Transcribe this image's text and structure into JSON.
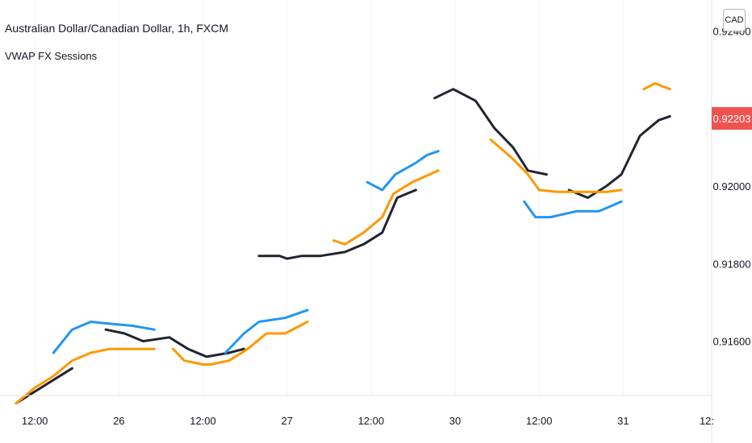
{
  "header": {
    "symbol_title": "Australian Dollar/Canadian Dollar, 1h, FXCM",
    "indicator_label": "VWAP FX Sessions",
    "currency_button": "CAD",
    "last_price_label": "0.92203"
  },
  "colors": {
    "black_series": "#222530",
    "blue_series": "#2196f3",
    "orange_series": "#ff9800",
    "price_badge": "#ef5350",
    "grid": "#f0f3fa"
  },
  "chart_data": {
    "type": "line",
    "title": "Australian Dollar/Canadian Dollar, 1h, FXCM",
    "subtitle": "VWAP FX Sessions",
    "xlabel": "",
    "ylabel": "",
    "ylim": [
      0.9146,
      0.9248
    ],
    "x_ticks": [
      "12:00",
      "26",
      "12:00",
      "27",
      "12:00",
      "30",
      "12:00",
      "31",
      "12:"
    ],
    "y_ticks": [
      "0.92400",
      "0.92000",
      "0.91800",
      "0.91600"
    ],
    "last_price": 0.92203,
    "grid": true,
    "series": [
      {
        "color": "#222530",
        "segments": [
          [
            [
              0,
              0.9144
            ],
            [
              2.0,
              0.915
            ],
            [
              3.0,
              0.9153
            ]
          ],
          [
            [
              4.8,
              0.9163
            ],
            [
              5.8,
              0.9162
            ],
            [
              6.8,
              0.916
            ],
            [
              8.2,
              0.9161
            ],
            [
              9.2,
              0.9158
            ],
            [
              10.2,
              0.9156
            ],
            [
              11.4,
              0.9157
            ],
            [
              12.2,
              0.9158
            ]
          ],
          [
            [
              13.0,
              0.9182
            ],
            [
              14.1,
              0.9182
            ],
            [
              14.5,
              0.91813
            ],
            [
              15.3,
              0.9182
            ],
            [
              16.3,
              0.9182
            ],
            [
              17.6,
              0.9183
            ],
            [
              18.6,
              0.9185
            ],
            [
              19.6,
              0.9188
            ],
            [
              20.4,
              0.9197
            ],
            [
              21.4,
              0.9199
            ]
          ],
          [
            [
              22.4,
              0.92227
            ],
            [
              23.4,
              0.9225
            ],
            [
              24.6,
              0.9222
            ],
            [
              25.6,
              0.9215
            ],
            [
              26.6,
              0.921
            ],
            [
              27.4,
              0.9204
            ],
            [
              28.4,
              0.9203
            ]
          ],
          [
            [
              29.6,
              0.9199
            ],
            [
              30.6,
              0.9197
            ],
            [
              31.6,
              0.92
            ],
            [
              32.4,
              0.9203
            ],
            [
              33.4,
              0.9213
            ],
            [
              34.4,
              0.9217
            ],
            [
              35.0,
              0.9218
            ]
          ]
        ]
      },
      {
        "color": "#2196f3",
        "segments": [
          [
            [
              2.0,
              0.9157
            ],
            [
              3.0,
              0.9163
            ],
            [
              4.0,
              0.9165
            ],
            [
              5.0,
              0.91645
            ],
            [
              6.2,
              0.9164
            ],
            [
              7.4,
              0.9163
            ]
          ],
          [
            [
              11.2,
              0.9157
            ],
            [
              12.2,
              0.9162
            ],
            [
              13.0,
              0.9165
            ],
            [
              14.4,
              0.9166
            ],
            [
              15.6,
              0.9168
            ]
          ],
          [
            [
              18.8,
              0.9201
            ],
            [
              19.6,
              0.9199
            ],
            [
              20.3,
              0.9203
            ],
            [
              21.4,
              0.9206
            ],
            [
              22.0,
              0.9208
            ],
            [
              22.6,
              0.9209
            ]
          ],
          [
            [
              27.2,
              0.9196
            ],
            [
              27.8,
              0.9192
            ],
            [
              28.6,
              0.9192
            ],
            [
              30.0,
              0.91935
            ],
            [
              31.2,
              0.91935
            ],
            [
              32.4,
              0.9196
            ]
          ]
        ]
      },
      {
        "color": "#ff9800",
        "segments": [
          [
            [
              0,
              0.9144
            ],
            [
              1.0,
              0.9148
            ],
            [
              2.0,
              0.9151
            ],
            [
              3.0,
              0.9155
            ],
            [
              4.0,
              0.9157
            ],
            [
              5.0,
              0.9158
            ],
            [
              6.4,
              0.9158
            ],
            [
              7.4,
              0.9158
            ]
          ],
          [
            [
              8.4,
              0.9158
            ],
            [
              9.0,
              0.9155
            ],
            [
              10.0,
              0.9154
            ],
            [
              10.4,
              0.9154
            ],
            [
              11.4,
              0.9155
            ],
            [
              12.4,
              0.9158
            ],
            [
              13.4,
              0.9162
            ],
            [
              14.4,
              0.9162
            ],
            [
              15.6,
              0.9165
            ]
          ],
          [
            [
              17.0,
              0.9186
            ],
            [
              17.6,
              0.9185
            ],
            [
              18.6,
              0.9188
            ],
            [
              19.6,
              0.9192
            ],
            [
              20.2,
              0.9198
            ],
            [
              21.2,
              0.9201
            ],
            [
              22.6,
              0.9204
            ]
          ],
          [
            [
              25.4,
              0.9212
            ],
            [
              26.6,
              0.9207
            ],
            [
              27.4,
              0.9203
            ],
            [
              28.0,
              0.9199
            ],
            [
              29.0,
              0.91985
            ],
            [
              31.6,
              0.91985
            ],
            [
              32.4,
              0.9199
            ]
          ],
          [
            [
              33.6,
              0.9225
            ],
            [
              34.2,
              0.92265
            ],
            [
              35.0,
              0.9225
            ]
          ]
        ]
      }
    ]
  }
}
